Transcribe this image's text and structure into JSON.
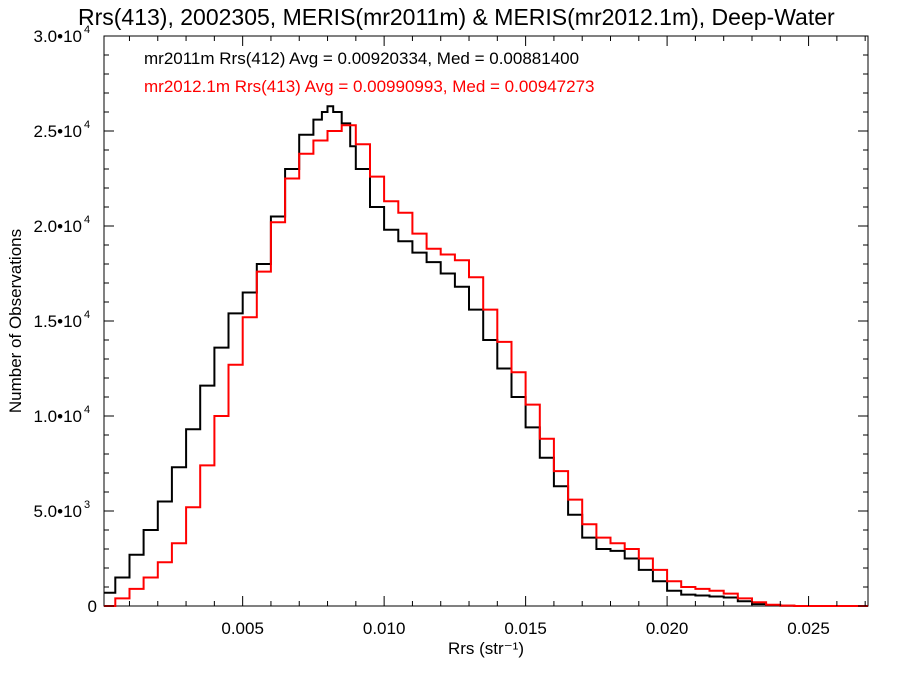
{
  "chart_data": {
    "type": "line",
    "title": "Rrs(413), 2002305, MERIS(mr2011m) & MERIS(mr2012.1m), Deep-Water",
    "xlabel": "Rrs (str⁻¹)",
    "ylabel": "Number of Observations",
    "xlim": [
      0.0001,
      0.0271
    ],
    "ylim": [
      0,
      30000
    ],
    "grid": false,
    "legend_position": "top-left",
    "x_ticks": [
      {
        "value": 0.005,
        "label": "0.005"
      },
      {
        "value": 0.01,
        "label": "0.010"
      },
      {
        "value": 0.015,
        "label": "0.015"
      },
      {
        "value": 0.02,
        "label": "0.020"
      },
      {
        "value": 0.025,
        "label": "0.025"
      }
    ],
    "y_ticks": [
      {
        "value": 0,
        "label": "0"
      },
      {
        "value": 5000,
        "label": "5.0•10",
        "exp": "3"
      },
      {
        "value": 10000,
        "label": "1.0•10",
        "exp": "4"
      },
      {
        "value": 15000,
        "label": "1.5•10",
        "exp": "4"
      },
      {
        "value": 20000,
        "label": "2.0•10",
        "exp": "4"
      },
      {
        "value": 25000,
        "label": "2.5•10",
        "exp": "4"
      },
      {
        "value": 30000,
        "label": "3.0•10",
        "exp": "4"
      }
    ],
    "legend": [
      "mr2011m Rrs(412) Avg = 0.00920334, Med = 0.00881400",
      "mr2012.1m Rrs(413) Avg = 0.00990993, Med = 0.00947273"
    ],
    "series": [
      {
        "color": "#000000",
        "x": [
          0.0001,
          0.0005,
          0.001,
          0.0015,
          0.002,
          0.0025,
          0.003,
          0.0035,
          0.004,
          0.0045,
          0.005,
          0.0055,
          0.006,
          0.0065,
          0.007,
          0.0075,
          0.0078,
          0.008,
          0.0082,
          0.0085,
          0.0088,
          0.009,
          0.0095,
          0.01,
          0.0105,
          0.011,
          0.0115,
          0.012,
          0.0125,
          0.013,
          0.0135,
          0.014,
          0.0145,
          0.015,
          0.0155,
          0.016,
          0.0165,
          0.017,
          0.0175,
          0.018,
          0.0185,
          0.019,
          0.0195,
          0.02,
          0.0205,
          0.021,
          0.0215,
          0.022,
          0.0225,
          0.023,
          0.0235,
          0.024,
          0.0245,
          0.025,
          0.026,
          0.0271
        ],
        "y": [
          700,
          1500,
          2700,
          4000,
          5500,
          7300,
          9300,
          11600,
          13600,
          15400,
          16500,
          18000,
          20500,
          23000,
          24800,
          25600,
          26000,
          26300,
          26000,
          25400,
          24200,
          23000,
          21000,
          19800,
          19200,
          18600,
          18100,
          17500,
          16800,
          15600,
          14000,
          12500,
          11000,
          9400,
          7800,
          6300,
          4800,
          3600,
          3000,
          2900,
          2500,
          1900,
          1300,
          800,
          600,
          550,
          500,
          450,
          250,
          100,
          30,
          10,
          0,
          0,
          0,
          0
        ]
      },
      {
        "color": "#ff0000",
        "x": [
          0.0001,
          0.0005,
          0.001,
          0.0015,
          0.002,
          0.0025,
          0.003,
          0.0035,
          0.004,
          0.0045,
          0.005,
          0.0055,
          0.006,
          0.0065,
          0.007,
          0.0075,
          0.008,
          0.0085,
          0.009,
          0.0095,
          0.01,
          0.0105,
          0.011,
          0.0115,
          0.012,
          0.0125,
          0.013,
          0.0135,
          0.014,
          0.0145,
          0.015,
          0.0155,
          0.016,
          0.0165,
          0.017,
          0.0175,
          0.018,
          0.0185,
          0.019,
          0.0195,
          0.02,
          0.0205,
          0.021,
          0.0215,
          0.022,
          0.0225,
          0.023,
          0.0235,
          0.024,
          0.0245,
          0.025,
          0.026,
          0.0271
        ],
        "y": [
          0,
          400,
          900,
          1500,
          2300,
          3300,
          5200,
          7400,
          10000,
          12700,
          15200,
          17600,
          20200,
          22500,
          23800,
          24500,
          25000,
          25300,
          24300,
          22600,
          21300,
          20700,
          19600,
          18800,
          18500,
          18200,
          17300,
          15600,
          13900,
          12300,
          10600,
          8800,
          7100,
          5600,
          4300,
          3600,
          3300,
          3000,
          2500,
          1900,
          1300,
          1000,
          900,
          800,
          650,
          400,
          200,
          70,
          20,
          0,
          0,
          0,
          0
        ]
      }
    ]
  }
}
